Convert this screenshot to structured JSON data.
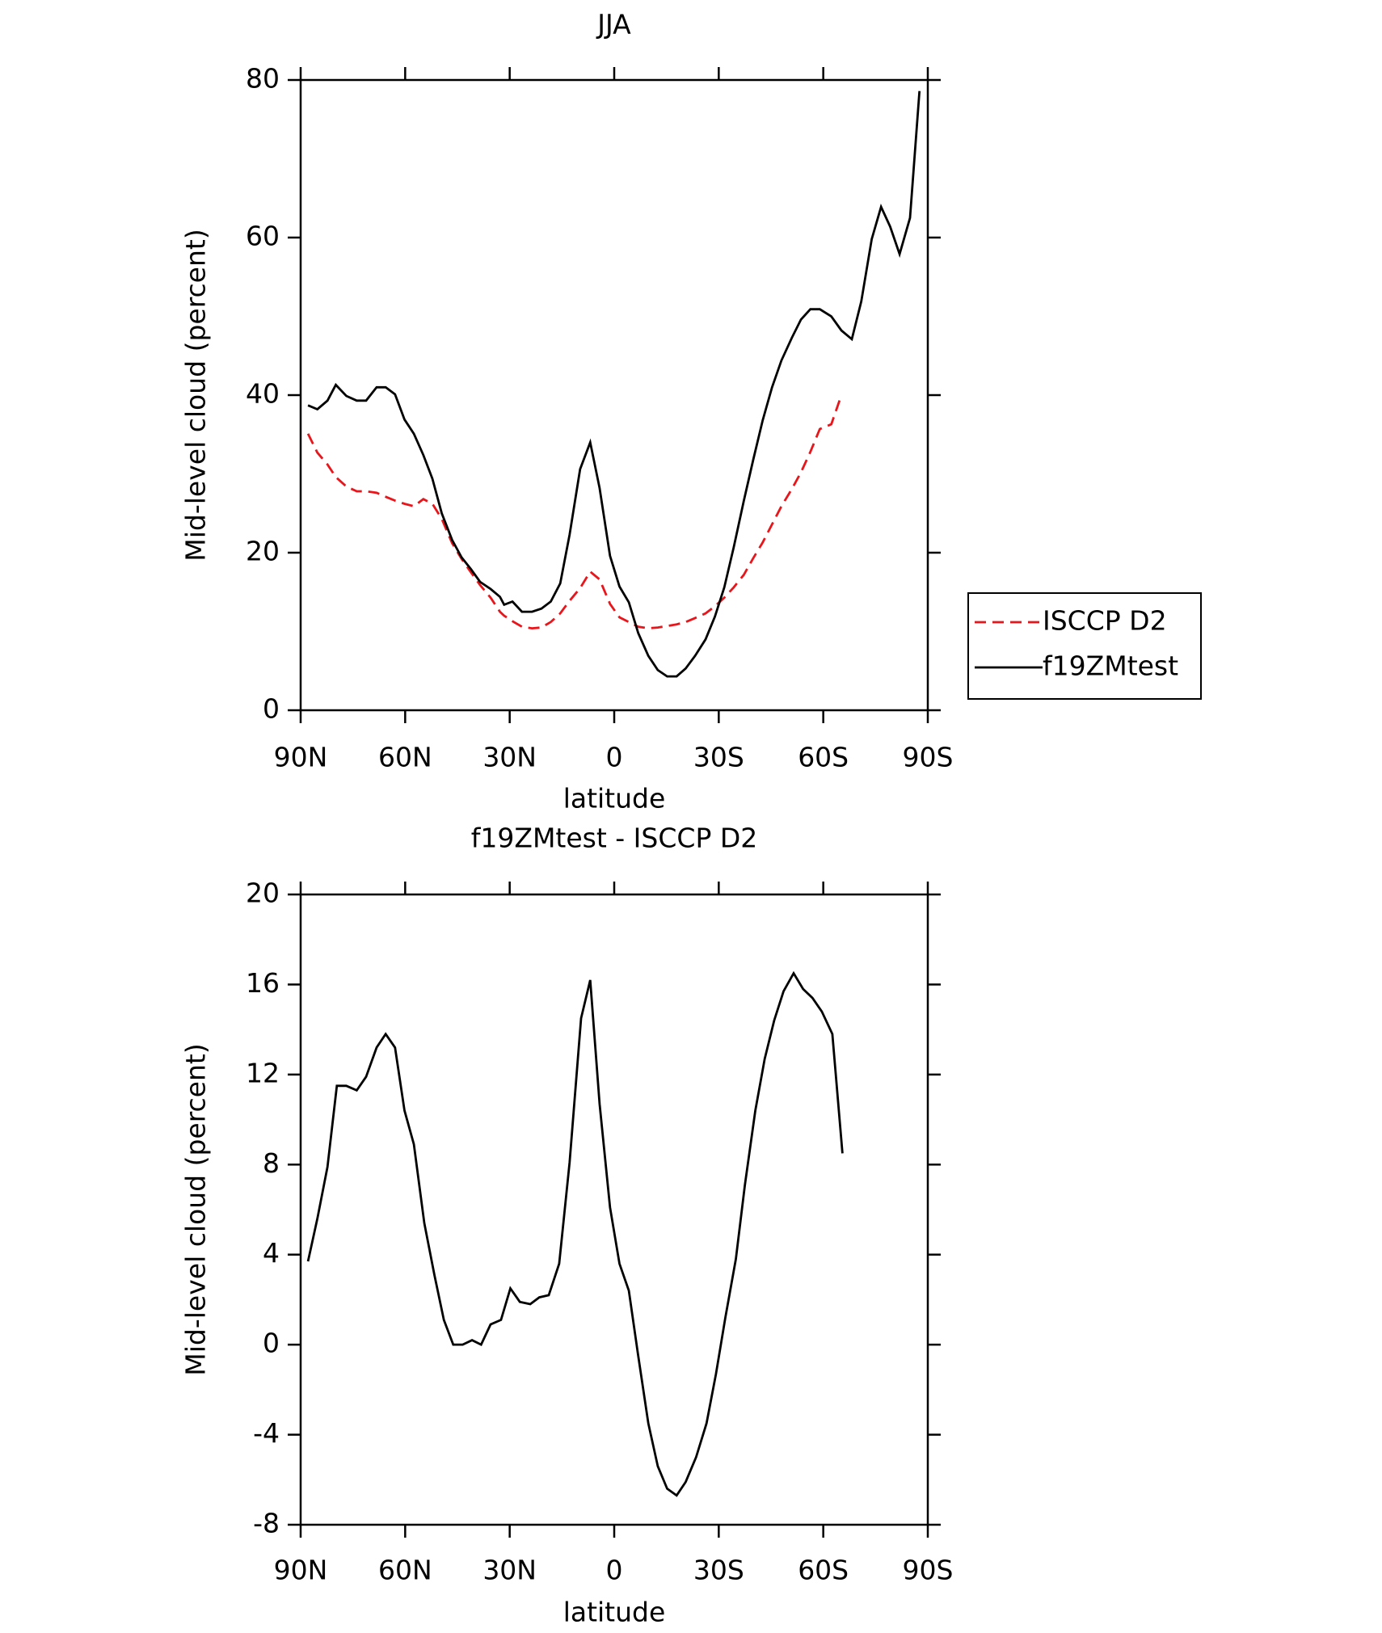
{
  "chart_data": [
    {
      "type": "line",
      "title": "JJA",
      "xlabel": "latitude",
      "ylabel": "Mid-level cloud (percent)",
      "x": [
        87.9,
        85.2,
        82.3,
        79.9,
        76.9,
        73.9,
        71.2,
        68.2,
        65.6,
        62.9,
        60.2,
        57.5,
        54.8,
        52.2,
        49.5,
        46.5,
        43.8,
        41.1,
        38.5,
        35.5,
        32.8,
        31.6,
        29.2,
        26.5,
        23.6,
        20.9,
        18.2,
        15.5,
        12.8,
        9.8,
        6.9,
        4.2,
        1.2,
        -1.5,
        -4.2,
        -6.9,
        -9.8,
        -12.5,
        -15.2,
        -17.9,
        -20.5,
        -23.2,
        -26.2,
        -28.9,
        -31.6,
        -34.3,
        -37.2,
        -39.9,
        -42.6,
        -45.3,
        -48.0,
        -51.0,
        -53.6,
        -56.3,
        -59.0,
        -62.3,
        -65.2,
        -68.2,
        -70.9,
        -73.9,
        -76.6,
        -79.2,
        -81.9,
        -84.9,
        -87.6
      ],
      "series": [
        {
          "name": "ISCCP D2",
          "color": "#e8151b",
          "line_style": "dashed",
          "values": [
            35.1,
            32.7,
            31.2,
            29.6,
            28.4,
            27.8,
            27.8,
            27.6,
            27.1,
            26.6,
            26.2,
            25.9,
            26.8,
            26.2,
            24.3,
            21.2,
            19.2,
            17.5,
            15.9,
            14.3,
            12.5,
            12.0,
            11.3,
            10.6,
            10.4,
            10.5,
            11.2,
            12.3,
            13.9,
            15.5,
            17.6,
            16.6,
            13.5,
            11.8,
            11.2,
            10.6,
            10.4,
            10.5,
            10.7,
            10.9,
            11.2,
            11.7,
            12.3,
            13.2,
            14.3,
            15.6,
            17.2,
            19.3,
            21.3,
            23.6,
            25.9,
            28.1,
            30.2,
            32.8,
            35.7,
            36.3,
            40.0,
            null,
            null,
            null,
            null,
            null,
            null,
            null,
            null
          ]
        },
        {
          "name": "f19ZMtest",
          "color": "#000000",
          "line_style": "solid",
          "values": [
            38.7,
            38.2,
            39.3,
            41.3,
            39.9,
            39.3,
            39.3,
            41.0,
            41.0,
            40.1,
            36.9,
            35.1,
            32.4,
            29.4,
            25.0,
            21.6,
            19.4,
            17.9,
            16.3,
            15.4,
            14.4,
            13.4,
            13.8,
            12.5,
            12.5,
            12.9,
            13.8,
            16.1,
            22.3,
            30.6,
            34.0,
            28.2,
            19.6,
            15.7,
            13.7,
            9.8,
            6.9,
            5.1,
            4.3,
            4.3,
            5.3,
            6.9,
            9.0,
            11.9,
            15.6,
            20.7,
            26.6,
            31.8,
            36.8,
            41.0,
            44.4,
            47.3,
            49.6,
            50.9,
            50.9,
            50.0,
            48.2,
            47.1,
            51.9,
            59.8,
            63.9,
            61.4,
            57.9,
            62.5,
            78.6
          ]
        }
      ],
      "xlim": [
        90,
        -90
      ],
      "xticks": [
        {
          "value": 90,
          "label": "90N"
        },
        {
          "value": 60,
          "label": "60N"
        },
        {
          "value": 30,
          "label": "30N"
        },
        0,
        {
          "value": -30,
          "label": "30S"
        },
        {
          "value": -60,
          "label": "60S"
        },
        {
          "value": -90,
          "label": "90S"
        }
      ],
      "ylim": [
        0,
        80
      ],
      "yticks": [
        0,
        20,
        40,
        60,
        80
      ],
      "legend": "right"
    },
    {
      "type": "line",
      "title": "f19ZMtest - ISCCP D2",
      "xlabel": "latitude",
      "ylabel": "Mid-level cloud (percent)",
      "x": [
        87.9,
        85.2,
        82.3,
        79.6,
        76.9,
        73.9,
        71.2,
        68.2,
        65.6,
        62.9,
        60.2,
        57.5,
        54.5,
        51.6,
        48.9,
        46.2,
        43.5,
        40.8,
        38.2,
        35.5,
        32.5,
        29.8,
        27.1,
        24.1,
        21.5,
        18.8,
        15.8,
        12.8,
        9.5,
        6.9,
        4.2,
        1.2,
        -1.5,
        -4.2,
        -6.8,
        -9.8,
        -12.5,
        -15.2,
        -17.9,
        -20.5,
        -23.5,
        -26.5,
        -29.2,
        -31.9,
        -34.9,
        -37.5,
        -40.5,
        -43.2,
        -45.9,
        -48.6,
        -51.5,
        -54.2,
        -56.9,
        -59.6,
        -62.6,
        -65.5
      ],
      "series": [
        {
          "color": "#000000",
          "line_style": "solid",
          "values": [
            3.7,
            5.6,
            7.9,
            11.5,
            11.5,
            11.3,
            11.9,
            13.2,
            13.8,
            13.2,
            10.4,
            8.9,
            5.4,
            3.1,
            1.1,
            0.0,
            0.0,
            0.2,
            0.0,
            0.9,
            1.1,
            2.5,
            1.9,
            1.8,
            2.1,
            2.2,
            3.6,
            8.1,
            14.5,
            16.2,
            10.7,
            6.1,
            3.6,
            2.4,
            -0.4,
            -3.5,
            -5.4,
            -6.4,
            -6.7,
            -6.1,
            -5.0,
            -3.5,
            -1.3,
            1.2,
            3.8,
            7.1,
            10.4,
            12.7,
            14.4,
            15.7,
            16.5,
            15.8,
            15.4,
            14.8,
            13.8,
            8.5
          ]
        }
      ],
      "xlim": [
        90,
        -90
      ],
      "xticks": [
        {
          "value": 90,
          "label": "90N"
        },
        {
          "value": 60,
          "label": "60N"
        },
        {
          "value": 30,
          "label": "30N"
        },
        0,
        {
          "value": -30,
          "label": "30S"
        },
        {
          "value": -60,
          "label": "60S"
        },
        {
          "value": -90,
          "label": "90S"
        }
      ],
      "ylim": [
        -8,
        20
      ],
      "yticks": [
        -8,
        -4,
        0,
        4,
        8,
        12,
        16,
        20
      ]
    }
  ]
}
